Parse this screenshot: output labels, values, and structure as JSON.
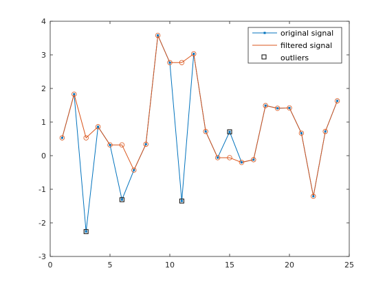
{
  "chart_data": {
    "type": "line",
    "xlim": [
      0,
      25
    ],
    "ylim": [
      -3,
      4
    ],
    "xticks": [
      0,
      5,
      10,
      15,
      20,
      25
    ],
    "yticks": [
      -3,
      -2,
      -1,
      0,
      1,
      2,
      3,
      4
    ],
    "grid": false,
    "legend_position": "top-right",
    "x": [
      1,
      2,
      3,
      4,
      5,
      6,
      7,
      8,
      9,
      10,
      11,
      12,
      13,
      14,
      15,
      16,
      17,
      18,
      19,
      20,
      21,
      22,
      23,
      24
    ],
    "series": [
      {
        "name": "original signal",
        "color": "#0072BD",
        "marker": "point",
        "values": [
          0.53,
          1.83,
          -2.26,
          0.86,
          0.32,
          -1.31,
          -0.43,
          0.34,
          3.58,
          2.77,
          -1.35,
          3.03,
          0.72,
          -0.06,
          0.71,
          -0.2,
          -0.12,
          1.49,
          1.41,
          1.42,
          0.67,
          -1.21,
          0.72,
          1.63
        ]
      },
      {
        "name": "filtered signal",
        "color": "#D95319",
        "marker": "circle",
        "values": [
          0.53,
          1.83,
          0.53,
          0.86,
          0.32,
          0.32,
          -0.43,
          0.34,
          3.58,
          2.77,
          2.77,
          3.03,
          0.72,
          -0.06,
          -0.06,
          -0.2,
          -0.12,
          1.49,
          1.41,
          1.42,
          0.67,
          -1.21,
          0.72,
          1.63
        ]
      }
    ],
    "outliers": {
      "name": "outliers",
      "color": "#000000",
      "marker": "square",
      "x": [
        3,
        6,
        11,
        15
      ],
      "y": [
        -2.26,
        -1.31,
        -1.35,
        0.71
      ]
    }
  }
}
